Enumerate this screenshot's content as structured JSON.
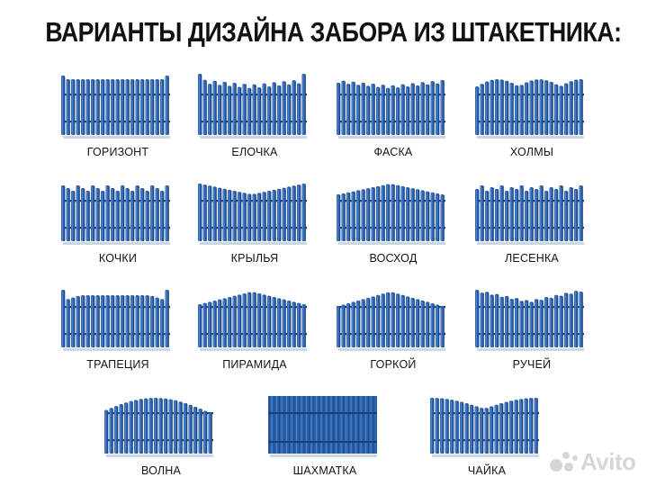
{
  "title": "ВАРИАНТЫ ДИЗАЙНА ЗАБОРА ИЗ ШТАКЕТНИКА:",
  "colors": {
    "picket": "#2b62ae",
    "picket_dark": "#183f78",
    "picket_light": "#5d8fd2",
    "shadow": "#c9d6e8",
    "label": "#141414"
  },
  "variants": [
    {
      "label": "ГОРИЗОНТ",
      "pattern": "flat"
    },
    {
      "label": "ЕЛОЧКА",
      "pattern": "elochka"
    },
    {
      "label": "ФАСКА",
      "pattern": "faska"
    },
    {
      "label": "ХОЛМЫ",
      "pattern": "holmy"
    },
    {
      "label": "КОЧКИ",
      "pattern": "kochki"
    },
    {
      "label": "КРЫЛЬЯ",
      "pattern": "krylya"
    },
    {
      "label": "ВОСХОД",
      "pattern": "voshod"
    },
    {
      "label": "ЛЕСЕНКА",
      "pattern": "lesenka"
    },
    {
      "label": "ТРАПЕЦИЯ",
      "pattern": "trapeciya"
    },
    {
      "label": "ПИРАМИДА",
      "pattern": "piramida"
    },
    {
      "label": "ГОРКОЙ",
      "pattern": "gorkoy"
    },
    {
      "label": "РУЧЕЙ",
      "pattern": "ruchey"
    },
    {
      "label": "ВОЛНА",
      "pattern": "volna"
    },
    {
      "label": "ШАХМАТКА",
      "pattern": "shahmatka"
    },
    {
      "label": "ЧАЙКА",
      "pattern": "chayka"
    }
  ],
  "watermark": {
    "text": "Avito",
    "icon": "avito-logo-icon"
  }
}
